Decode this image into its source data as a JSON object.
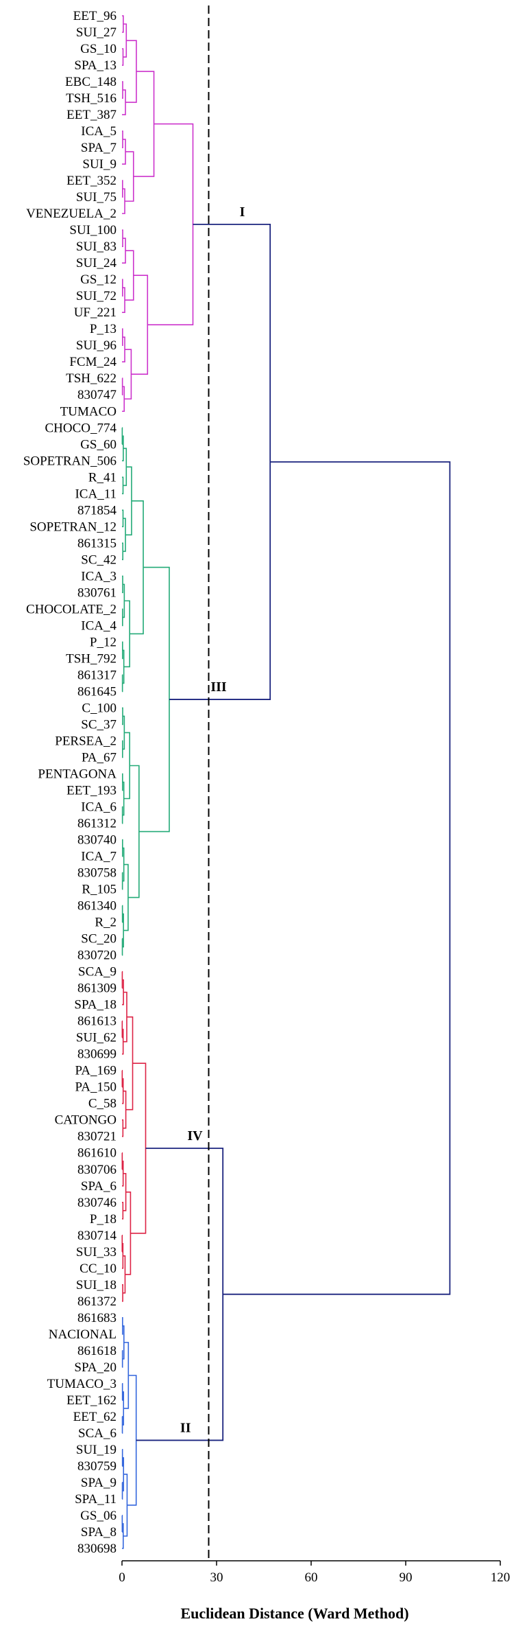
{
  "chart_data": {
    "type": "dendrogram",
    "xlabel": "Euclidean Distance (Ward Method)",
    "xlim": [
      0,
      120
    ],
    "xticks": [
      "0",
      "30",
      "60",
      "90",
      "120"
    ],
    "cut_line": 27.5,
    "colors": {
      "I": "#cc33cc",
      "II": "#3366dd",
      "III": "#22aa77",
      "IV": "#dd2244",
      "trunk": "#1a237e",
      "cut": "#000000"
    },
    "leaves": [
      "EET_96",
      "SUI_27",
      "GS_10",
      "SPA_13",
      "EBC_148",
      "TSH_516",
      "EET_387",
      "ICA_5",
      "SPA_7",
      "SUI_9",
      "EET_352",
      "SUI_75",
      "VENEZUELA_2",
      "SUI_100",
      "SUI_83",
      "SUI_24",
      "GS_12",
      "SUI_72",
      "UF_221",
      "P_13",
      "SUI_96",
      "FCM_24",
      "TSH_622",
      "830747",
      "TUMACO",
      "CHOCO_774",
      "GS_60",
      "SOPETRAN_506",
      "R_41",
      "ICA_11",
      "871854",
      "SOPETRAN_12",
      "861315",
      "SC_42",
      "ICA_3",
      "830761",
      "CHOCOLATE_2",
      "ICA_4",
      "P_12",
      "TSH_792",
      "861317",
      "861645",
      "C_100",
      "SC_37",
      "PERSEA_2",
      "PA_67",
      "PENTAGONA",
      "EET_193",
      "ICA_6",
      "861312",
      "830740",
      "ICA_7",
      "830758",
      "R_105",
      "861340",
      "R_2",
      "SC_20",
      "830720",
      "SCA_9",
      "861309",
      "SPA_18",
      "861613",
      "SUI_62",
      "830699",
      "PA_169",
      "PA_150",
      "C_58",
      "CATONGO",
      "830721",
      "861610",
      "830706",
      "SPA_6",
      "830746",
      "P_18",
      "830714",
      "SUI_33",
      "CC_10",
      "SUI_18",
      "861372",
      "861683",
      "NACIONAL",
      "861618",
      "SPA_20",
      "TUMACO_3",
      "EET_162",
      "EET_62",
      "SCA_6",
      "SUI_19",
      "830759",
      "SPA_9",
      "SPA_11",
      "GS_06",
      "SPA_8",
      "830698"
    ],
    "clusters": [
      {
        "label": "I",
        "leaf_range": [
          0,
          24
        ],
        "height": 22.5
      },
      {
        "label": "III",
        "leaf_range": [
          25,
          57
        ],
        "height": 15
      },
      {
        "label": "IV",
        "leaf_range": [
          58,
          78
        ],
        "height": 7.5
      },
      {
        "label": "II",
        "leaf_range": [
          79,
          93
        ],
        "height": 4.5
      }
    ],
    "merges": [
      {
        "a": "I",
        "b": "III",
        "height": 47
      },
      {
        "a": "IV",
        "b": "II",
        "height": 32
      },
      {
        "a": "I+III",
        "b": "IV+II",
        "height": 104
      }
    ]
  }
}
